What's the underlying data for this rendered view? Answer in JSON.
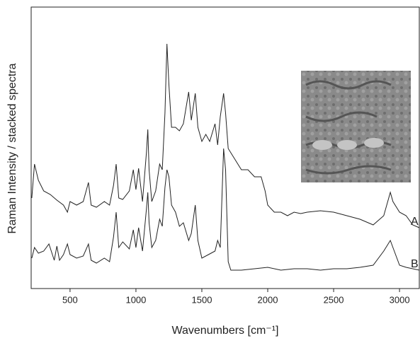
{
  "chart_data": {
    "type": "line",
    "xlabel": "Wavenumbers [cm⁻¹]",
    "ylabel": "Raman Intensity / stacked spectra",
    "xlim": [
      205,
      3150
    ],
    "xticks": [
      500,
      1000,
      1500,
      2000,
      2500,
      3000
    ],
    "ylim": [
      0,
      400
    ],
    "series": [
      {
        "name": "A",
        "color": "#222222",
        "x": [
          210,
          230,
          260,
          300,
          350,
          400,
          450,
          480,
          500,
          550,
          600,
          640,
          660,
          700,
          760,
          800,
          830,
          850,
          870,
          900,
          950,
          980,
          1000,
          1020,
          1050,
          1080,
          1090,
          1100,
          1120,
          1150,
          1180,
          1200,
          1220,
          1235,
          1250,
          1270,
          1300,
          1330,
          1360,
          1400,
          1420,
          1450,
          1470,
          1500,
          1530,
          1560,
          1600,
          1620,
          1640,
          1665,
          1680,
          1700,
          1750,
          1800,
          1850,
          1900,
          1950,
          1980,
          2000,
          2050,
          2100,
          2150,
          2200,
          2250,
          2300,
          2400,
          2500,
          2600,
          2700,
          2800,
          2880,
          2930,
          2950,
          3000,
          3050,
          3100,
          3150
        ],
        "values": [
          128,
          176,
          153,
          138,
          133,
          125,
          118,
          108,
          123,
          118,
          123,
          150,
          118,
          115,
          123,
          118,
          146,
          176,
          128,
          126,
          138,
          168,
          140,
          170,
          123,
          193,
          225,
          168,
          123,
          138,
          176,
          168,
          248,
          346,
          288,
          228,
          228,
          223,
          233,
          278,
          238,
          276,
          228,
          208,
          218,
          208,
          233,
          203,
          243,
          276,
          248,
          198,
          183,
          168,
          168,
          158,
          158,
          138,
          118,
          108,
          108,
          103,
          108,
          106,
          108,
          110,
          108,
          103,
          98,
          90,
          103,
          136,
          123,
          108,
          103,
          90,
          86
        ]
      },
      {
        "name": "B",
        "color": "#222222",
        "x": [
          210,
          230,
          260,
          300,
          340,
          380,
          400,
          420,
          450,
          480,
          500,
          550,
          600,
          640,
          660,
          700,
          760,
          800,
          830,
          850,
          870,
          900,
          950,
          980,
          1000,
          1020,
          1050,
          1080,
          1090,
          1100,
          1120,
          1150,
          1180,
          1200,
          1220,
          1235,
          1250,
          1270,
          1300,
          1330,
          1360,
          1400,
          1420,
          1450,
          1470,
          1500,
          1550,
          1600,
          1620,
          1640,
          1665,
          1680,
          1700,
          1720,
          1800,
          1900,
          2000,
          2100,
          2200,
          2300,
          2400,
          2500,
          2600,
          2700,
          2800,
          2880,
          2930,
          2950,
          3000,
          3050,
          3100,
          3150
        ],
        "values": [
          43,
          58,
          50,
          53,
          63,
          40,
          60,
          40,
          48,
          63,
          48,
          43,
          46,
          63,
          40,
          36,
          43,
          38,
          73,
          108,
          58,
          66,
          56,
          83,
          58,
          86,
          53,
          113,
          136,
          93,
          58,
          68,
          98,
          88,
          143,
          168,
          158,
          118,
          108,
          88,
          93,
          68,
          78,
          118,
          68,
          43,
          48,
          53,
          68,
          58,
          198,
          168,
          38,
          26,
          26,
          28,
          30,
          26,
          28,
          28,
          26,
          28,
          28,
          30,
          33,
          53,
          68,
          58,
          33,
          30,
          28,
          26
        ]
      }
    ]
  }
}
